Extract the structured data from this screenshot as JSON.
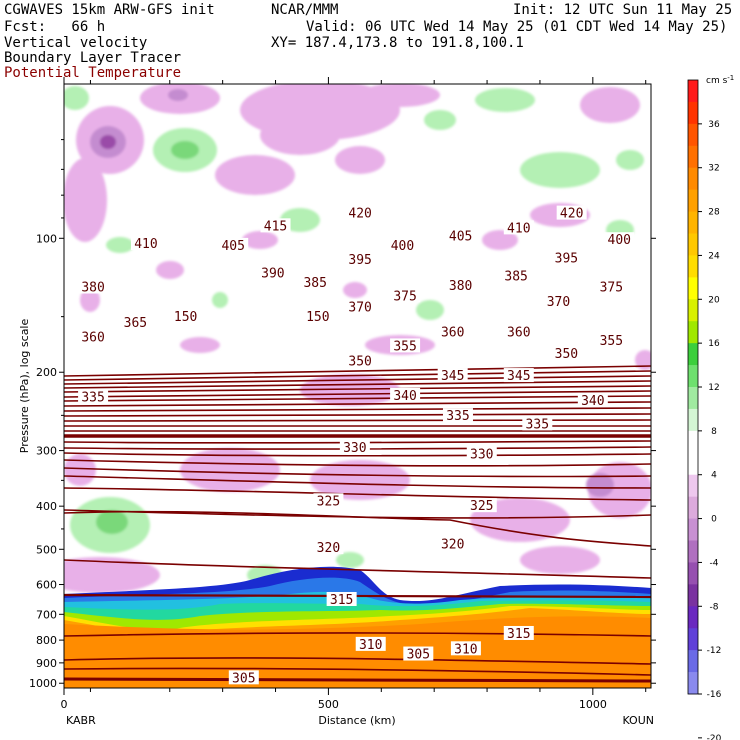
{
  "header": {
    "model": "CGWAVES 15km ARW-GFS init",
    "org": "NCAR/MMM",
    "init": "Init: 12 UTC Sun 11 May 25",
    "fcst": "Fcst:   66 h",
    "valid": "Valid: 06 UTC Wed 14 May 25 (01 CDT Wed 14 May 25)",
    "field1": "Vertical velocity",
    "xy": "XY= 187.4,173.8 to 191.8,100.1",
    "field2": "Boundary Layer Tracer",
    "field3": "Potential Temperature"
  },
  "colors": {
    "theta": "#7a0000",
    "theta_label": "#8b0000",
    "up_light": "#b4f0b4",
    "up_mid": "#7ad87a",
    "down_light": "#e8b0e8",
    "down_mid": "#c48cd0",
    "down_dark": "#9a4ca8"
  },
  "chart_data": {
    "type": "cross-section",
    "xlabel": "Distance (km)",
    "ylabel": "Pressure (hPa), log scale",
    "x_ticks": [
      "0",
      "500",
      "1000"
    ],
    "x_end_labels": {
      "left": "KABR",
      "right": "KOUN"
    },
    "y_ticks": [
      "100",
      "200",
      "300",
      "400",
      "500",
      "600",
      "700",
      "800",
      "900",
      "1000"
    ],
    "y_scale": "log",
    "xlim": [
      0,
      1110
    ],
    "ylim": [
      1025,
      45
    ],
    "colorbar": {
      "units": "cm s",
      "units_exp": "-1",
      "labels": [
        "36",
        "32",
        "28",
        "24",
        "20",
        "16",
        "12",
        "8",
        "4",
        "0",
        "-4",
        "-8",
        "-12",
        "-16",
        "-20"
      ],
      "colors": [
        "#ff1a1a",
        "#ff3300",
        "#ff5500",
        "#ff7000",
        "#ff8a00",
        "#ffa000",
        "#ffb400",
        "#ffc800",
        "#ffdd00",
        "#ffff00",
        "#d8f000",
        "#a0e800",
        "#3ccf3c",
        "#6ee06e",
        "#a0eaa0",
        "#d4f5d4",
        "#ffffff",
        "#ffffff",
        "#eec8ee",
        "#dcaadc",
        "#c890d2",
        "#b070c0",
        "#9650b0",
        "#7a32a0",
        "#6a28c0",
        "#6040d8",
        "#6a6ae6",
        "#8a8aee"
      ]
    },
    "theta_labels": [
      {
        "text": "420",
        "x": 560,
        "p": 88
      },
      {
        "text": "420",
        "x": 960,
        "p": 88
      },
      {
        "text": "415",
        "x": 400,
        "p": 94
      },
      {
        "text": "410",
        "x": 155,
        "p": 103
      },
      {
        "text": "410",
        "x": 860,
        "p": 95
      },
      {
        "text": "405",
        "x": 320,
        "p": 104
      },
      {
        "text": "405",
        "x": 750,
        "p": 99
      },
      {
        "text": "400",
        "x": 640,
        "p": 104
      },
      {
        "text": "400",
        "x": 1050,
        "p": 101
      },
      {
        "text": "395",
        "x": 560,
        "p": 112
      },
      {
        "text": "395",
        "x": 950,
        "p": 111
      },
      {
        "text": "390",
        "x": 395,
        "p": 120
      },
      {
        "text": "385",
        "x": 475,
        "p": 126
      },
      {
        "text": "385",
        "x": 855,
        "p": 122
      },
      {
        "text": "380",
        "x": 55,
        "p": 129
      },
      {
        "text": "380",
        "x": 750,
        "p": 128
      },
      {
        "text": "375",
        "x": 645,
        "p": 135
      },
      {
        "text": "375",
        "x": 1035,
        "p": 129
      },
      {
        "text": "370",
        "x": 560,
        "p": 143
      },
      {
        "text": "370",
        "x": 935,
        "p": 139
      },
      {
        "text": "365",
        "x": 135,
        "p": 155
      },
      {
        "text": "360",
        "x": 55,
        "p": 167
      },
      {
        "text": "360",
        "x": 735,
        "p": 163
      },
      {
        "text": "360",
        "x": 860,
        "p": 163
      },
      {
        "text": "355",
        "x": 645,
        "p": 175
      },
      {
        "text": "355",
        "x": 1035,
        "p": 170
      },
      {
        "text": "350",
        "x": 560,
        "p": 189
      },
      {
        "text": "350",
        "x": 950,
        "p": 182
      },
      {
        "text": "345",
        "x": 735,
        "p": 204
      },
      {
        "text": "345",
        "x": 860,
        "p": 204
      },
      {
        "text": "340",
        "x": 645,
        "p": 226
      },
      {
        "text": "340",
        "x": 1000,
        "p": 232
      },
      {
        "text": "335",
        "x": 55,
        "p": 228
      },
      {
        "text": "335",
        "x": 745,
        "p": 251
      },
      {
        "text": "335",
        "x": 895,
        "p": 262
      },
      {
        "text": "330",
        "x": 550,
        "p": 296
      },
      {
        "text": "330",
        "x": 790,
        "p": 306
      },
      {
        "text": "325",
        "x": 500,
        "p": 390
      },
      {
        "text": "325",
        "x": 790,
        "p": 400
      },
      {
        "text": "320",
        "x": 500,
        "p": 497
      },
      {
        "text": "320",
        "x": 735,
        "p": 488
      },
      {
        "text": "315",
        "x": 525,
        "p": 650
      },
      {
        "text": "315",
        "x": 860,
        "p": 775
      },
      {
        "text": "310",
        "x": 580,
        "p": 820
      },
      {
        "text": "310",
        "x": 760,
        "p": 839
      },
      {
        "text": "305",
        "x": 670,
        "p": 862
      },
      {
        "text": "305",
        "x": 340,
        "p": 975
      }
    ],
    "inline_small_labels": [
      {
        "text": "150",
        "x": 230,
        "p": 151
      },
      {
        "text": "150",
        "x": 480,
        "p": 151
      }
    ]
  }
}
